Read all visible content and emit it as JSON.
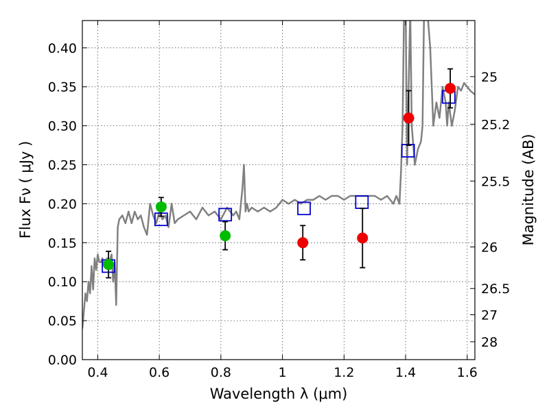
{
  "chart_data": {
    "type": "scatter",
    "xlabel": "Wavelength  λ (μm)",
    "ylabel": "Flux  Fν  ( μJy )",
    "y2label": "Magnitude (AB)",
    "xlim": [
      0.35,
      1.625
    ],
    "ylim": [
      0.0,
      0.435
    ],
    "grid": true,
    "colors": {
      "model": "#808080",
      "synthetic": "#0000cc",
      "detection_green": "#00bb00",
      "detection_red": "#ee0000",
      "errorbar": "#000000"
    },
    "x_ticks": [
      {
        "value": 0.4,
        "label": "0.4"
      },
      {
        "value": 0.6,
        "label": "0.6"
      },
      {
        "value": 0.8,
        "label": "0.8"
      },
      {
        "value": 1.0,
        "label": "1"
      },
      {
        "value": 1.2,
        "label": "1.2"
      },
      {
        "value": 1.4,
        "label": "1.4"
      },
      {
        "value": 1.6,
        "label": "1.6"
      }
    ],
    "y_ticks": [
      {
        "value": 0.0,
        "label": "0.00"
      },
      {
        "value": 0.05,
        "label": "0.05"
      },
      {
        "value": 0.1,
        "label": "0.10"
      },
      {
        "value": 0.15,
        "label": "0.15"
      },
      {
        "value": 0.2,
        "label": "0.20"
      },
      {
        "value": 0.25,
        "label": "0.25"
      },
      {
        "value": 0.3,
        "label": "0.30"
      },
      {
        "value": 0.35,
        "label": "0.35"
      },
      {
        "value": 0.4,
        "label": "0.40"
      }
    ],
    "mag_ticks": [
      {
        "mag": 25,
        "label": "25"
      },
      {
        "mag": 25.2,
        "label": "25.2"
      },
      {
        "mag": 25.5,
        "label": "25.5"
      },
      {
        "mag": 26,
        "label": "26"
      },
      {
        "mag": 26.5,
        "label": "26.5"
      },
      {
        "mag": 27,
        "label": "27"
      },
      {
        "mag": 28,
        "label": "28"
      }
    ],
    "model_spectrum": {
      "x": [
        0.35,
        0.36,
        0.365,
        0.37,
        0.375,
        0.38,
        0.385,
        0.39,
        0.395,
        0.4,
        0.405,
        0.41,
        0.415,
        0.42,
        0.43,
        0.44,
        0.445,
        0.45,
        0.455,
        0.46,
        0.465,
        0.47,
        0.48,
        0.49,
        0.5,
        0.51,
        0.52,
        0.53,
        0.54,
        0.55,
        0.56,
        0.57,
        0.58,
        0.59,
        0.6,
        0.61,
        0.62,
        0.63,
        0.64,
        0.65,
        0.66,
        0.68,
        0.7,
        0.72,
        0.74,
        0.76,
        0.78,
        0.8,
        0.82,
        0.84,
        0.85,
        0.86,
        0.87,
        0.875,
        0.88,
        0.885,
        0.89,
        0.9,
        0.92,
        0.94,
        0.96,
        0.98,
        1.0,
        1.02,
        1.04,
        1.06,
        1.08,
        1.1,
        1.12,
        1.14,
        1.16,
        1.18,
        1.2,
        1.22,
        1.24,
        1.26,
        1.28,
        1.3,
        1.32,
        1.34,
        1.36,
        1.37,
        1.38,
        1.385,
        1.39,
        1.395,
        1.4,
        1.405,
        1.41,
        1.415,
        1.42,
        1.43,
        1.44,
        1.45,
        1.455,
        1.46,
        1.47,
        1.48,
        1.49,
        1.5,
        1.51,
        1.52,
        1.53,
        1.535,
        1.54,
        1.545,
        1.55,
        1.56,
        1.57,
        1.58,
        1.59,
        1.6,
        1.61,
        1.625
      ],
      "y": [
        0.04,
        0.085,
        0.075,
        0.1,
        0.085,
        0.12,
        0.09,
        0.13,
        0.115,
        0.135,
        0.125,
        0.125,
        0.13,
        0.12,
        0.13,
        0.128,
        0.135,
        0.1,
        0.125,
        0.07,
        0.17,
        0.18,
        0.185,
        0.175,
        0.19,
        0.175,
        0.19,
        0.18,
        0.185,
        0.17,
        0.16,
        0.2,
        0.185,
        0.175,
        0.19,
        0.18,
        0.185,
        0.17,
        0.2,
        0.175,
        0.18,
        0.185,
        0.19,
        0.18,
        0.195,
        0.185,
        0.19,
        0.18,
        0.195,
        0.185,
        0.19,
        0.18,
        0.22,
        0.25,
        0.19,
        0.2,
        0.19,
        0.195,
        0.19,
        0.195,
        0.19,
        0.195,
        0.205,
        0.2,
        0.205,
        0.2,
        0.205,
        0.205,
        0.21,
        0.205,
        0.21,
        0.21,
        0.205,
        0.21,
        0.21,
        0.21,
        0.21,
        0.21,
        0.205,
        0.21,
        0.2,
        0.21,
        0.2,
        0.24,
        0.3,
        0.45,
        0.45,
        0.25,
        0.35,
        0.45,
        0.3,
        0.25,
        0.27,
        0.28,
        0.3,
        0.45,
        0.45,
        0.4,
        0.3,
        0.33,
        0.31,
        0.35,
        0.33,
        0.3,
        0.33,
        0.315,
        0.3,
        0.32,
        0.35,
        0.345,
        0.355,
        0.35,
        0.345,
        0.34
      ]
    },
    "synthetic_photometry": [
      {
        "x": 0.435,
        "y": 0.12
      },
      {
        "x": 0.606,
        "y": 0.18
      },
      {
        "x": 0.814,
        "y": 0.186
      },
      {
        "x": 1.07,
        "y": 0.194
      },
      {
        "x": 1.258,
        "y": 0.202
      },
      {
        "x": 1.408,
        "y": 0.268
      },
      {
        "x": 1.54,
        "y": 0.337
      }
    ],
    "observed_photometry": [
      {
        "x": 0.435,
        "y": 0.122,
        "err": 0.017,
        "color": "green"
      },
      {
        "x": 0.606,
        "y": 0.196,
        "err": 0.012,
        "color": "green"
      },
      {
        "x": 0.814,
        "y": 0.159,
        "err": 0.018,
        "color": "green"
      },
      {
        "x": 1.066,
        "y": 0.15,
        "err": 0.022,
        "color": "red"
      },
      {
        "x": 1.26,
        "y": 0.156,
        "err": 0.038,
        "color": "red"
      },
      {
        "x": 1.41,
        "y": 0.31,
        "err": 0.035,
        "color": "red"
      },
      {
        "x": 1.545,
        "y": 0.348,
        "err": 0.025,
        "color": "red"
      }
    ]
  }
}
